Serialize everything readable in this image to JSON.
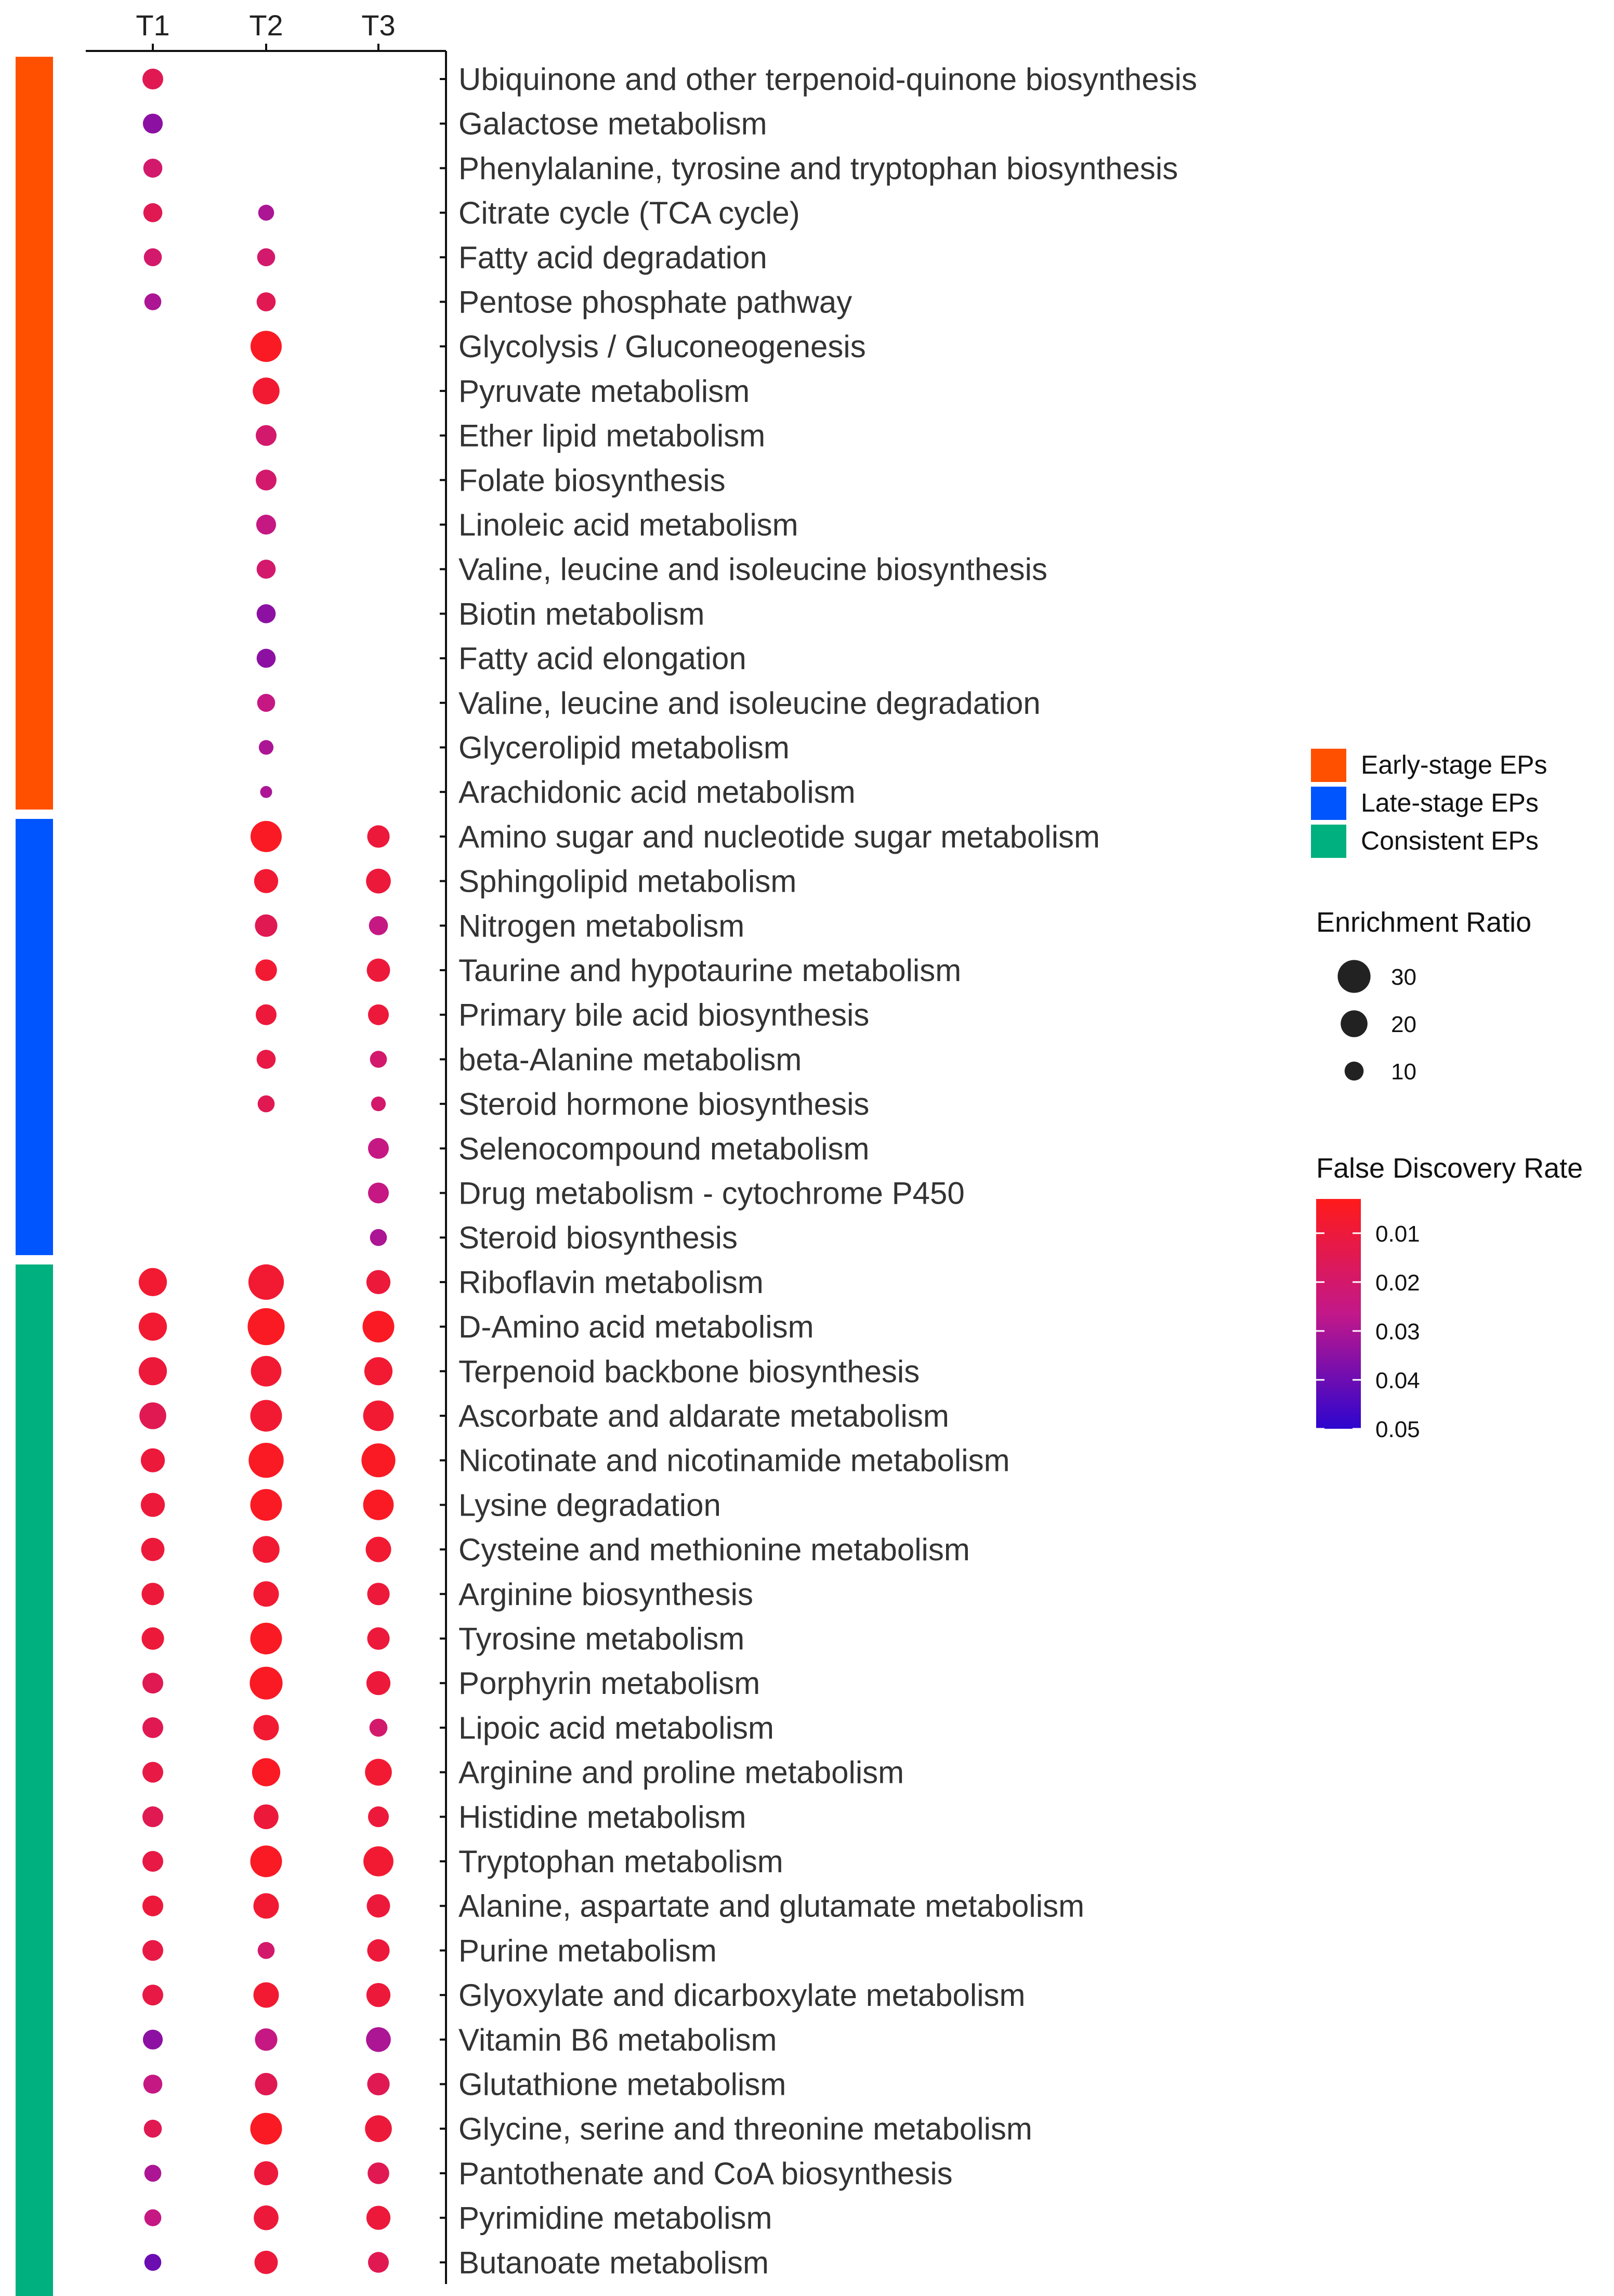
{
  "chart_data": {
    "type": "bubble",
    "columns": [
      "T1",
      "T2",
      "T3"
    ],
    "groups": [
      {
        "name": "Early-stage EPs",
        "color": "#FF5000",
        "start": 0,
        "end": 16
      },
      {
        "name": "Late-stage EPs",
        "color": "#0055FF",
        "start": 17,
        "end": 26
      },
      {
        "name": "Consistent EPs",
        "color": "#00B07E",
        "start": 27,
        "end": 50
      }
    ],
    "pathways": [
      {
        "name": "Ubiquinone and other terpenoid-quinone biosynthesis",
        "T1": [
          12,
          0.015
        ],
        "T2": null,
        "T3": null
      },
      {
        "name": "Galactose metabolism",
        "T1": [
          11,
          0.035
        ],
        "T2": null,
        "T3": null
      },
      {
        "name": "Phenylalanine, tyrosine and tryptophan biosynthesis",
        "T1": [
          10,
          0.02
        ],
        "T2": null,
        "T3": null
      },
      {
        "name": "Citrate cycle (TCA cycle)",
        "T1": [
          10,
          0.015
        ],
        "T2": [
          7,
          0.03
        ],
        "T3": null
      },
      {
        "name": "Fatty acid degradation",
        "T1": [
          9,
          0.02
        ],
        "T2": [
          9,
          0.02
        ],
        "T3": null
      },
      {
        "name": "Pentose phosphate pathway",
        "T1": [
          8,
          0.03
        ],
        "T2": [
          10,
          0.015
        ],
        "T3": null
      },
      {
        "name": "Glycolysis / Gluconeogenesis",
        "T1": null,
        "T2": [
          27,
          0.005
        ],
        "T3": null
      },
      {
        "name": "Pyruvate metabolism",
        "T1": null,
        "T2": [
          20,
          0.008
        ],
        "T3": null
      },
      {
        "name": "Ether lipid metabolism",
        "T1": null,
        "T2": [
          12,
          0.02
        ],
        "T3": null
      },
      {
        "name": "Folate biosynthesis",
        "T1": null,
        "T2": [
          12,
          0.02
        ],
        "T3": null
      },
      {
        "name": "Linoleic acid metabolism",
        "T1": null,
        "T2": [
          11,
          0.025
        ],
        "T3": null
      },
      {
        "name": "Valine, leucine and isoleucine biosynthesis",
        "T1": null,
        "T2": [
          10,
          0.02
        ],
        "T3": null
      },
      {
        "name": "Biotin metabolism",
        "T1": null,
        "T2": [
          10,
          0.035
        ],
        "T3": null
      },
      {
        "name": "Fatty acid elongation",
        "T1": null,
        "T2": [
          10,
          0.035
        ],
        "T3": null
      },
      {
        "name": "Valine, leucine and isoleucine degradation",
        "T1": null,
        "T2": [
          9,
          0.025
        ],
        "T3": null
      },
      {
        "name": "Glycerolipid metabolism",
        "T1": null,
        "T2": [
          6,
          0.03
        ],
        "T3": null
      },
      {
        "name": "Arachidonic acid metabolism",
        "T1": null,
        "T2": [
          4,
          0.03
        ],
        "T3": null
      },
      {
        "name": "Amino sugar and nucleotide sugar metabolism",
        "T1": null,
        "T2": [
          27,
          0.005
        ],
        "T3": [
          14,
          0.01
        ]
      },
      {
        "name": "Sphingolipid metabolism",
        "T1": null,
        "T2": [
          16,
          0.008
        ],
        "T3": [
          17,
          0.01
        ]
      },
      {
        "name": "Nitrogen metabolism",
        "T1": null,
        "T2": [
          14,
          0.015
        ],
        "T3": [
          10,
          0.025
        ]
      },
      {
        "name": "Taurine and hypotaurine metabolism",
        "T1": null,
        "T2": [
          13,
          0.008
        ],
        "T3": [
          15,
          0.01
        ]
      },
      {
        "name": "Primary bile acid biosynthesis",
        "T1": null,
        "T2": [
          12,
          0.01
        ],
        "T3": [
          12,
          0.01
        ]
      },
      {
        "name": "beta-Alanine metabolism",
        "T1": null,
        "T2": [
          10,
          0.012
        ],
        "T3": [
          8,
          0.02
        ]
      },
      {
        "name": "Steroid hormone biosynthesis",
        "T1": null,
        "T2": [
          8,
          0.015
        ],
        "T3": [
          6,
          0.02
        ]
      },
      {
        "name": "Selenocompound metabolism",
        "T1": null,
        "T2": null,
        "T3": [
          12,
          0.025
        ]
      },
      {
        "name": "Drug metabolism - cytochrome P450",
        "T1": null,
        "T2": null,
        "T3": [
          12,
          0.025
        ]
      },
      {
        "name": "Steroid biosynthesis",
        "T1": null,
        "T2": null,
        "T3": [
          8,
          0.03
        ]
      },
      {
        "name": "Riboflavin metabolism",
        "T1": [
          22,
          0.008
        ],
        "T2": [
          35,
          0.008
        ],
        "T3": [
          16,
          0.01
        ]
      },
      {
        "name": "D-Amino acid metabolism",
        "T1": [
          22,
          0.008
        ],
        "T2": [
          38,
          0.005
        ],
        "T3": [
          28,
          0.005
        ]
      },
      {
        "name": "Terpenoid backbone biosynthesis",
        "T1": [
          22,
          0.01
        ],
        "T2": [
          26,
          0.008
        ],
        "T3": [
          22,
          0.008
        ]
      },
      {
        "name": "Ascorbate and aldarate metabolism",
        "T1": [
          20,
          0.015
        ],
        "T2": [
          28,
          0.008
        ],
        "T3": [
          26,
          0.008
        ]
      },
      {
        "name": "Nicotinate and nicotinamide metabolism",
        "T1": [
          16,
          0.01
        ],
        "T2": [
          34,
          0.005
        ],
        "T3": [
          32,
          0.005
        ]
      },
      {
        "name": "Lysine degradation",
        "T1": [
          16,
          0.01
        ],
        "T2": [
          28,
          0.005
        ],
        "T3": [
          26,
          0.005
        ]
      },
      {
        "name": "Cysteine and methionine metabolism",
        "T1": [
          15,
          0.01
        ],
        "T2": [
          20,
          0.008
        ],
        "T3": [
          18,
          0.008
        ]
      },
      {
        "name": "Arginine biosynthesis",
        "T1": [
          14,
          0.01
        ],
        "T2": [
          18,
          0.008
        ],
        "T3": [
          14,
          0.01
        ]
      },
      {
        "name": "Tyrosine metabolism",
        "T1": [
          14,
          0.01
        ],
        "T2": [
          28,
          0.005
        ],
        "T3": [
          14,
          0.01
        ]
      },
      {
        "name": "Porphyrin metabolism",
        "T1": [
          12,
          0.015
        ],
        "T2": [
          30,
          0.005
        ],
        "T3": [
          16,
          0.01
        ]
      },
      {
        "name": "Lipoic acid metabolism",
        "T1": [
          12,
          0.015
        ],
        "T2": [
          18,
          0.008
        ],
        "T3": [
          9,
          0.02
        ]
      },
      {
        "name": "Arginine and proline metabolism",
        "T1": [
          12,
          0.012
        ],
        "T2": [
          22,
          0.005
        ],
        "T3": [
          20,
          0.008
        ]
      },
      {
        "name": "Histidine metabolism",
        "T1": [
          12,
          0.015
        ],
        "T2": [
          17,
          0.01
        ],
        "T3": [
          12,
          0.01
        ]
      },
      {
        "name": "Tryptophan metabolism",
        "T1": [
          12,
          0.012
        ],
        "T2": [
          28,
          0.005
        ],
        "T3": [
          25,
          0.008
        ]
      },
      {
        "name": "Alanine, aspartate and glutamate metabolism",
        "T1": [
          12,
          0.01
        ],
        "T2": [
          18,
          0.008
        ],
        "T3": [
          15,
          0.01
        ]
      },
      {
        "name": "Purine metabolism",
        "T1": [
          12,
          0.012
        ],
        "T2": [
          8,
          0.02
        ],
        "T3": [
          14,
          0.01
        ]
      },
      {
        "name": "Glyoxylate and dicarboxylate metabolism",
        "T1": [
          12,
          0.012
        ],
        "T2": [
          18,
          0.008
        ],
        "T3": [
          16,
          0.01
        ]
      },
      {
        "name": "Vitamin B6 metabolism",
        "T1": [
          11,
          0.035
        ],
        "T2": [
          14,
          0.025
        ],
        "T3": [
          17,
          0.03
        ]
      },
      {
        "name": "Glutathione metabolism",
        "T1": [
          10,
          0.025
        ],
        "T2": [
          14,
          0.015
        ],
        "T3": [
          14,
          0.015
        ]
      },
      {
        "name": "Glycine, serine and threonine metabolism",
        "T1": [
          9,
          0.015
        ],
        "T2": [
          28,
          0.005
        ],
        "T3": [
          20,
          0.01
        ]
      },
      {
        "name": "Pantothenate and CoA biosynthesis",
        "T1": [
          8,
          0.03
        ],
        "T2": [
          16,
          0.01
        ],
        "T3": [
          13,
          0.015
        ]
      },
      {
        "name": "Pyrimidine metabolism",
        "T1": [
          8,
          0.025
        ],
        "T2": [
          17,
          0.01
        ],
        "T3": [
          16,
          0.01
        ]
      },
      {
        "name": "Butanoate metabolism",
        "T1": [
          8,
          0.04
        ],
        "T2": [
          15,
          0.01
        ],
        "T3": [
          12,
          0.015
        ]
      }
    ],
    "legend_groups_labels": [
      "Early-stage EPs",
      "Late-stage EPs",
      "Consistent EPs"
    ],
    "size_legend": {
      "title": "Enrichment Ratio",
      "values": [
        30,
        20,
        10
      ]
    },
    "color_legend": {
      "title": "False Discovery Rate",
      "ticks": [
        0.01,
        0.02,
        0.03,
        0.04,
        0.05
      ],
      "tick_labels": [
        "0.01",
        "0.02",
        "0.03",
        "0.04",
        "0.05"
      ],
      "domain": [
        0.003,
        0.05
      ],
      "low_color": "#FF1A1A",
      "mid_color": "#C2188A",
      "high_color": "#2D05CF"
    },
    "size_domain": [
      0,
      40
    ]
  }
}
